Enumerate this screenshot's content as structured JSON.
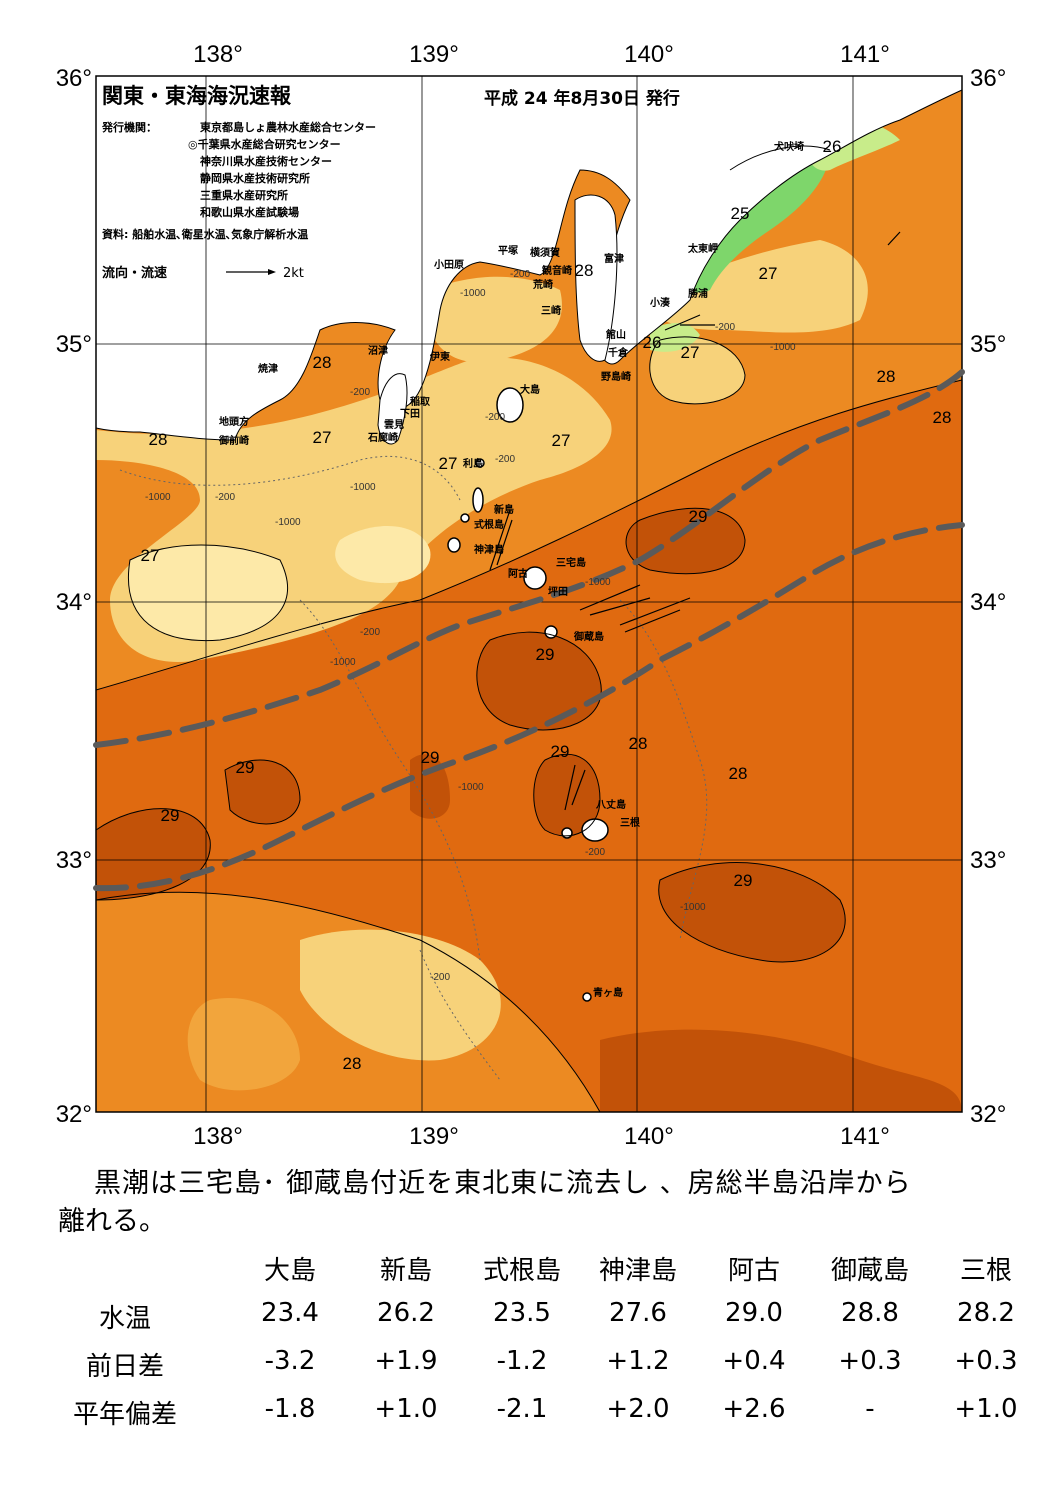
{
  "header": {
    "title": "関東・東海海況速報",
    "date": "平成 24 年8月30日 発行",
    "issuer_label": "発行機関：",
    "issuers": [
      "東京都島しょ農林水産総合センター",
      "◎千葉県水産総合研究センター",
      "神奈川県水産技術センター",
      "静岡県水産技術研究所",
      "三重県水産研究所",
      "和歌山県水産試験場"
    ],
    "source": "資料: 船舶水温､衛星水温､気象庁解析水温",
    "legend_label": "流向・流速",
    "legend_scale": "2kt"
  },
  "axes": {
    "lon_labels": [
      "138°",
      "139°",
      "140°",
      "141°"
    ],
    "lat_labels": [
      "36°",
      "35°",
      "34°",
      "33°",
      "32°"
    ]
  },
  "isotherm_labels": [
    "26",
    "25",
    "27",
    "28",
    "28",
    "26",
    "27",
    "28",
    "28",
    "27",
    "28",
    "27",
    "27",
    "27",
    "29",
    "29",
    "29",
    "29",
    "29",
    "28",
    "28",
    "29",
    "29",
    "28"
  ],
  "depth_labels": [
    "-200",
    "-200",
    "-1000",
    "-200",
    "-200",
    "-1000",
    "-200",
    "-200",
    "-1000",
    "-1000",
    "-200",
    "-1000",
    "-1000",
    "-1000",
    "-1000",
    "-200",
    "-1000",
    "-200"
  ],
  "places": [
    "犬吠埼",
    "太東岬",
    "勝浦",
    "小湊",
    "富津",
    "観音崎",
    "横須賀",
    "平塚",
    "小田原",
    "荒崎",
    "三崎",
    "館山",
    "千倉",
    "野島崎",
    "沼津",
    "伊東",
    "焼津",
    "稲取",
    "下田",
    "雲見",
    "石廊崎",
    "地頭方",
    "御前崎",
    "大島",
    "利島",
    "新島",
    "式根島",
    "神津島",
    "三宅島",
    "阿古",
    "坪田",
    "御蔵島",
    "八丈島",
    "三根",
    "青ヶ島"
  ],
  "colors": {
    "t25": "#7ed66b",
    "t26": "#c8ec8a",
    "t27": "#f7d27a",
    "t27b": "#fde9a8",
    "t28": "#f2a53c",
    "t28b": "#ec8a22",
    "t29": "#e06a10",
    "t29b": "#c25208",
    "kuroshio": "#5a5a5a",
    "land": "#ffffff"
  },
  "summary": {
    "line1": "黒潮は三宅島･ 御蔵島付近を東北東に流去し 、房総半島沿岸から",
    "line2": "離れる。"
  },
  "table": {
    "columns": [
      "大島",
      "新島",
      "式根島",
      "神津島",
      "阿古",
      "御蔵島",
      "三根"
    ],
    "rows": [
      {
        "label": "水温",
        "values": [
          "23.4",
          "26.2",
          "23.5",
          "27.6",
          "29.0",
          "28.8",
          "28.2"
        ]
      },
      {
        "label": "前日差",
        "values": [
          "-3.2",
          "+1.9",
          "-1.2",
          "+1.2",
          "+0.4",
          "+0.3",
          "+0.3"
        ]
      },
      {
        "label": "平年偏差",
        "values": [
          "-1.8",
          "+1.0",
          "-2.1",
          "+2.0",
          "+2.6",
          "-",
          "+1.0"
        ]
      }
    ]
  }
}
